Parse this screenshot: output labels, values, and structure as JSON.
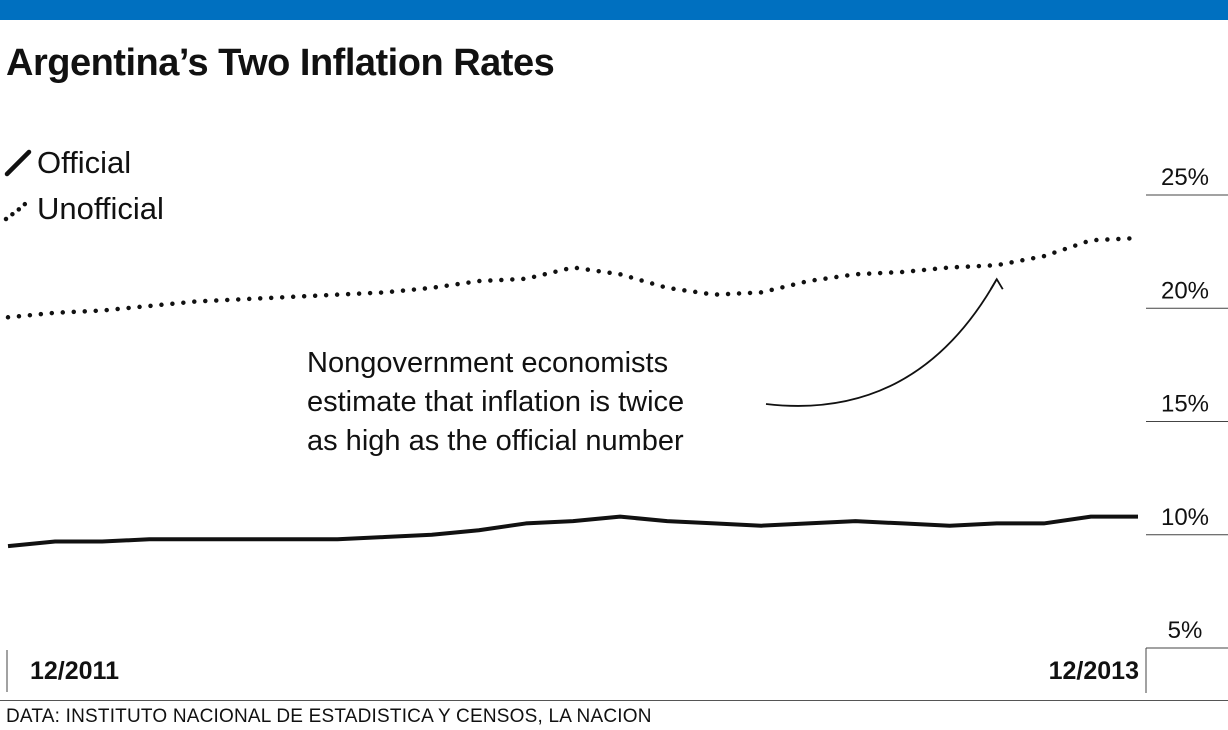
{
  "brand": {
    "accent": "#0070c0"
  },
  "chart_data": {
    "type": "line",
    "title": "Argentina’s Two Inflation Rates",
    "xlabel": "",
    "ylabel": "",
    "x_tick_labels": [
      "12/2011",
      "12/2013"
    ],
    "x": [
      "12/2011",
      "1/2012",
      "2/2012",
      "3/2012",
      "4/2012",
      "5/2012",
      "6/2012",
      "7/2012",
      "8/2012",
      "9/2012",
      "10/2012",
      "11/2012",
      "12/2012",
      "1/2013",
      "2/2013",
      "3/2013",
      "4/2013",
      "5/2013",
      "6/2013",
      "7/2013",
      "8/2013",
      "9/2013",
      "10/2013",
      "11/2013",
      "12/2013"
    ],
    "ylim": [
      5,
      25
    ],
    "yticks": [
      5,
      10,
      15,
      20,
      25
    ],
    "ytick_labels": [
      "5%",
      "10%",
      "15%",
      "20%",
      "25%"
    ],
    "series": [
      {
        "name": "Official",
        "style": "solid",
        "color": "#111111",
        "values": [
          9.5,
          9.7,
          9.7,
          9.8,
          9.8,
          9.8,
          9.8,
          9.8,
          9.9,
          10.0,
          10.2,
          10.5,
          10.6,
          10.8,
          10.6,
          10.5,
          10.4,
          10.5,
          10.6,
          10.5,
          10.4,
          10.5,
          10.5,
          10.8,
          10.8
        ]
      },
      {
        "name": "Unofficial",
        "style": "dotted",
        "color": "#111111",
        "values": [
          19.6,
          19.8,
          19.9,
          20.1,
          20.3,
          20.4,
          20.5,
          20.6,
          20.7,
          20.9,
          21.2,
          21.3,
          21.8,
          21.5,
          20.9,
          20.6,
          20.7,
          21.2,
          21.5,
          21.6,
          21.8,
          21.9,
          22.3,
          23.0,
          23.1
        ]
      }
    ],
    "legend": {
      "placement": "top-left"
    },
    "annotation": {
      "lines": [
        "Nongovernment economists",
        "estimate that inflation is twice",
        "as high as the official number"
      ],
      "points_to": {
        "series": "Unofficial",
        "x": "9/2013"
      }
    },
    "grid": false
  },
  "source": "DATA:  INSTITUTO NACIONAL DE ESTADISTICA Y CENSOS, LA NACION"
}
